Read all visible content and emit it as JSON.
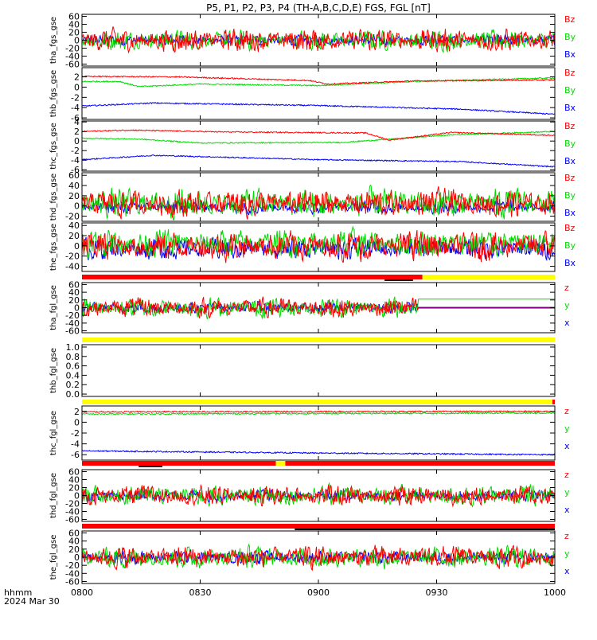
{
  "figure": {
    "title": "P5, P1, P2, P3, P4 (TH-A,B,C,D,E) FGS, FGL [nT]",
    "time_label": "hhmm",
    "date_label": "2024 Mar 30"
  },
  "colors": {
    "x": "#0000ff",
    "y": "#00dd00",
    "z": "#ff0000",
    "bar_red": "#ff0000",
    "bar_yellow": "#ffff00",
    "bar_black": "#000000"
  },
  "chart_data": {
    "type": "line",
    "x_ticks": [
      "0800",
      "0830",
      "0900",
      "0930",
      "1000"
    ],
    "x_range": [
      "08:00",
      "10:00"
    ],
    "panels": [
      {
        "id": "tha_fgs",
        "ylabel": "tha_fgs_gse",
        "yticks": [
          "60",
          "40",
          "20",
          "0",
          "-20",
          "-40",
          "-60"
        ],
        "ylim": [
          -65,
          65
        ],
        "legend": [
          "Bz",
          "By",
          "Bx"
        ],
        "noise": {
          "x": 8,
          "y": 14,
          "z": 16
        },
        "base": {
          "x": 0,
          "y": 0,
          "z": 0
        }
      },
      {
        "id": "thb_fgs",
        "ylabel": "thb_fgs_gse",
        "yticks": [
          "2",
          "0",
          "-2",
          "-4",
          "-6"
        ],
        "ylim": [
          -6.3,
          3.8
        ],
        "legend": [
          "Bz",
          "By",
          "Bx"
        ],
        "series_note": "quiet",
        "smooth": {
          "z": [
            [
              0,
              2.1
            ],
            [
              0.2,
              2.0
            ],
            [
              0.48,
              1.3
            ],
            [
              0.52,
              0.6
            ],
            [
              0.7,
              1.2
            ],
            [
              1,
              1.4
            ]
          ],
          "y": [
            [
              0,
              1.1
            ],
            [
              0.08,
              1.1
            ],
            [
              0.12,
              0.1
            ],
            [
              0.25,
              0.6
            ],
            [
              0.5,
              0.3
            ],
            [
              0.7,
              1.1
            ],
            [
              1,
              1.8
            ]
          ],
          "x": [
            [
              0,
              -3.7
            ],
            [
              0.15,
              -3.1
            ],
            [
              0.5,
              -3.6
            ],
            [
              0.8,
              -4.3
            ],
            [
              1,
              -5.3
            ]
          ]
        }
      },
      {
        "id": "thc_fgs",
        "ylabel": "thc_fgs_gse",
        "yticks": [
          "4",
          "2",
          "0",
          "-2",
          "-4",
          "-6"
        ],
        "ylim": [
          -6.3,
          4.2
        ],
        "legend": [
          "Bz",
          "By",
          "Bx"
        ],
        "smooth": {
          "z": [
            [
              0,
              2.0
            ],
            [
              0.1,
              2.3
            ],
            [
              0.3,
              1.9
            ],
            [
              0.6,
              1.7
            ],
            [
              0.65,
              0.2
            ],
            [
              0.78,
              1.8
            ],
            [
              1,
              1.2
            ]
          ],
          "y": [
            [
              0,
              0.6
            ],
            [
              0.12,
              0.4
            ],
            [
              0.25,
              -0.4
            ],
            [
              0.55,
              -0.3
            ],
            [
              0.78,
              1.3
            ],
            [
              1,
              2.0
            ]
          ],
          "x": [
            [
              0,
              -3.9
            ],
            [
              0.15,
              -3.0
            ],
            [
              0.5,
              -3.9
            ],
            [
              0.8,
              -4.3
            ],
            [
              1,
              -5.4
            ]
          ]
        }
      },
      {
        "id": "thd_fgs",
        "ylabel": "thd_fgs_gse",
        "yticks": [
          "60",
          "40",
          "20",
          "0",
          "-20"
        ],
        "ylim": [
          -30,
          65
        ],
        "legend": [
          "Bz",
          "By",
          "Bx"
        ],
        "noise": {
          "x": 7,
          "y": 16,
          "z": 15
        },
        "base": {
          "x": -2,
          "y": 5,
          "z": 5
        }
      },
      {
        "id": "the_fgs",
        "ylabel": "the_fgs_gse",
        "yticks": [
          "40",
          "20",
          "0",
          "-20",
          "-40"
        ],
        "ylim": [
          -50,
          45
        ],
        "legend": [
          "Bz",
          "By",
          "Bx"
        ],
        "noise": {
          "x": 12,
          "y": 15,
          "z": 16
        },
        "base": {
          "x": -5,
          "y": 5,
          "z": 0
        }
      },
      {
        "id": "tha_fgl",
        "ylabel": "tha_fgl_gse",
        "yticks": [
          "60",
          "40",
          "20",
          "0",
          "-20",
          "-40",
          "-60"
        ],
        "ylim": [
          -65,
          65
        ],
        "legend": [
          "z",
          "y",
          "x"
        ],
        "noise": {
          "x": 8,
          "y": 14,
          "z": 14
        },
        "base": {
          "x": 0,
          "y": 0,
          "z": 0
        },
        "cutoff": 0.71
      },
      {
        "id": "thb_fgl",
        "ylabel": "thb_fgl_gse",
        "yticks": [
          "1.0",
          "0.8",
          "0.6",
          "0.4",
          "0.2",
          "0.0"
        ],
        "ylim": [
          -0.05,
          1.05
        ],
        "legend": []
      },
      {
        "id": "thc_fgl",
        "ylabel": "thc_fgl_gse",
        "yticks": [
          "2",
          "0",
          "-2",
          "-4",
          "-6"
        ],
        "ylim": [
          -7,
          3
        ],
        "legend": [
          "z",
          "y",
          "x"
        ],
        "smooth": {
          "z": [
            [
              0,
              1.9
            ],
            [
              1,
              2.0
            ]
          ],
          "y": [
            [
              0,
              1.5
            ],
            [
              1,
              1.7
            ]
          ],
          "x": [
            [
              0,
              -5.3
            ],
            [
              0.5,
              -5.7
            ],
            [
              1,
              -6.0
            ]
          ]
        }
      },
      {
        "id": "thd_fgl",
        "ylabel": "thd_fgl_gse",
        "yticks": [
          "60",
          "40",
          "20",
          "0",
          "-20",
          "-40",
          "-60"
        ],
        "ylim": [
          -65,
          65
        ],
        "legend": [
          "z",
          "y",
          "x"
        ],
        "noise": {
          "x": 8,
          "y": 14,
          "z": 14
        },
        "base": {
          "x": 0,
          "y": 0,
          "z": 0
        }
      },
      {
        "id": "the_fgl",
        "ylabel": "the_fgl_gse",
        "yticks": [
          "60",
          "40",
          "20",
          "0",
          "-20",
          "-40",
          "-60"
        ],
        "ylim": [
          -65,
          65
        ],
        "legend": [
          "z",
          "y",
          "x"
        ],
        "noise": {
          "x": 9,
          "y": 15,
          "z": 15
        },
        "base": {
          "x": 0,
          "y": 0,
          "z": 0
        }
      }
    ],
    "mode_bars": [
      {
        "before_panel": "tha_fgl",
        "segments": [
          {
            "from": 0,
            "to": 0.72,
            "color": "red"
          },
          {
            "from": 0.72,
            "to": 1,
            "color": "yellow"
          }
        ],
        "black": [
          [
            0.64,
            0.7
          ]
        ]
      },
      {
        "before_panel": "thb_fgl",
        "segments": [
          {
            "from": 0,
            "to": 1,
            "color": "yellow"
          }
        ],
        "black": []
      },
      {
        "before_panel": "thc_fgl",
        "segments": [
          {
            "from": 0,
            "to": 0.995,
            "color": "yellow"
          },
          {
            "from": 0.995,
            "to": 1,
            "color": "red"
          }
        ],
        "black": []
      },
      {
        "before_panel": "thd_fgl",
        "segments": [
          {
            "from": 0,
            "to": 0.41,
            "color": "red"
          },
          {
            "from": 0.41,
            "to": 0.43,
            "color": "yellow"
          },
          {
            "from": 0.43,
            "to": 1,
            "color": "red"
          }
        ],
        "black": [
          [
            0.12,
            0.17
          ]
        ]
      },
      {
        "before_panel": "the_fgl",
        "segments": [
          {
            "from": 0,
            "to": 1,
            "color": "red"
          }
        ],
        "black": [
          [
            0.45,
            1
          ]
        ]
      }
    ]
  }
}
